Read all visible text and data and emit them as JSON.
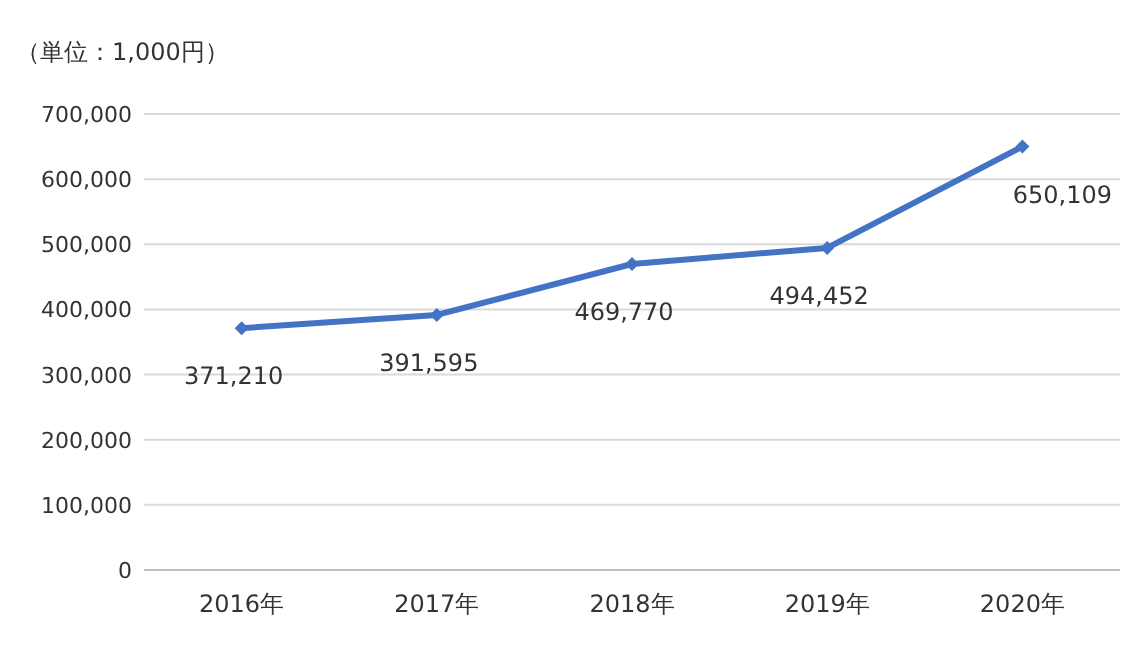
{
  "chart_data": {
    "type": "line",
    "ylabel": "（単位：1,000円）",
    "categories": [
      "2016年",
      "2017年",
      "2018年",
      "2019年",
      "2020年"
    ],
    "series": [
      {
        "color": "#4472c4",
        "values": [
          371210,
          391595,
          469770,
          494452,
          650109
        ],
        "value_labels": [
          "371,210",
          "391,595",
          "469,770",
          "494,452",
          "650,109"
        ]
      }
    ],
    "ylim": [
      0,
      700000
    ],
    "yticks": [
      {
        "value": 0,
        "label": "0"
      },
      {
        "value": 100000,
        "label": "100,000"
      },
      {
        "value": 200000,
        "label": "200,000"
      },
      {
        "value": 300000,
        "label": "300,000"
      },
      {
        "value": 400000,
        "label": "400,000"
      },
      {
        "value": 500000,
        "label": "500,000"
      },
      {
        "value": 600000,
        "label": "600,000"
      },
      {
        "value": 700000,
        "label": "700,000"
      }
    ],
    "grid": "y",
    "marker": "diamond",
    "line_style": "solid"
  }
}
